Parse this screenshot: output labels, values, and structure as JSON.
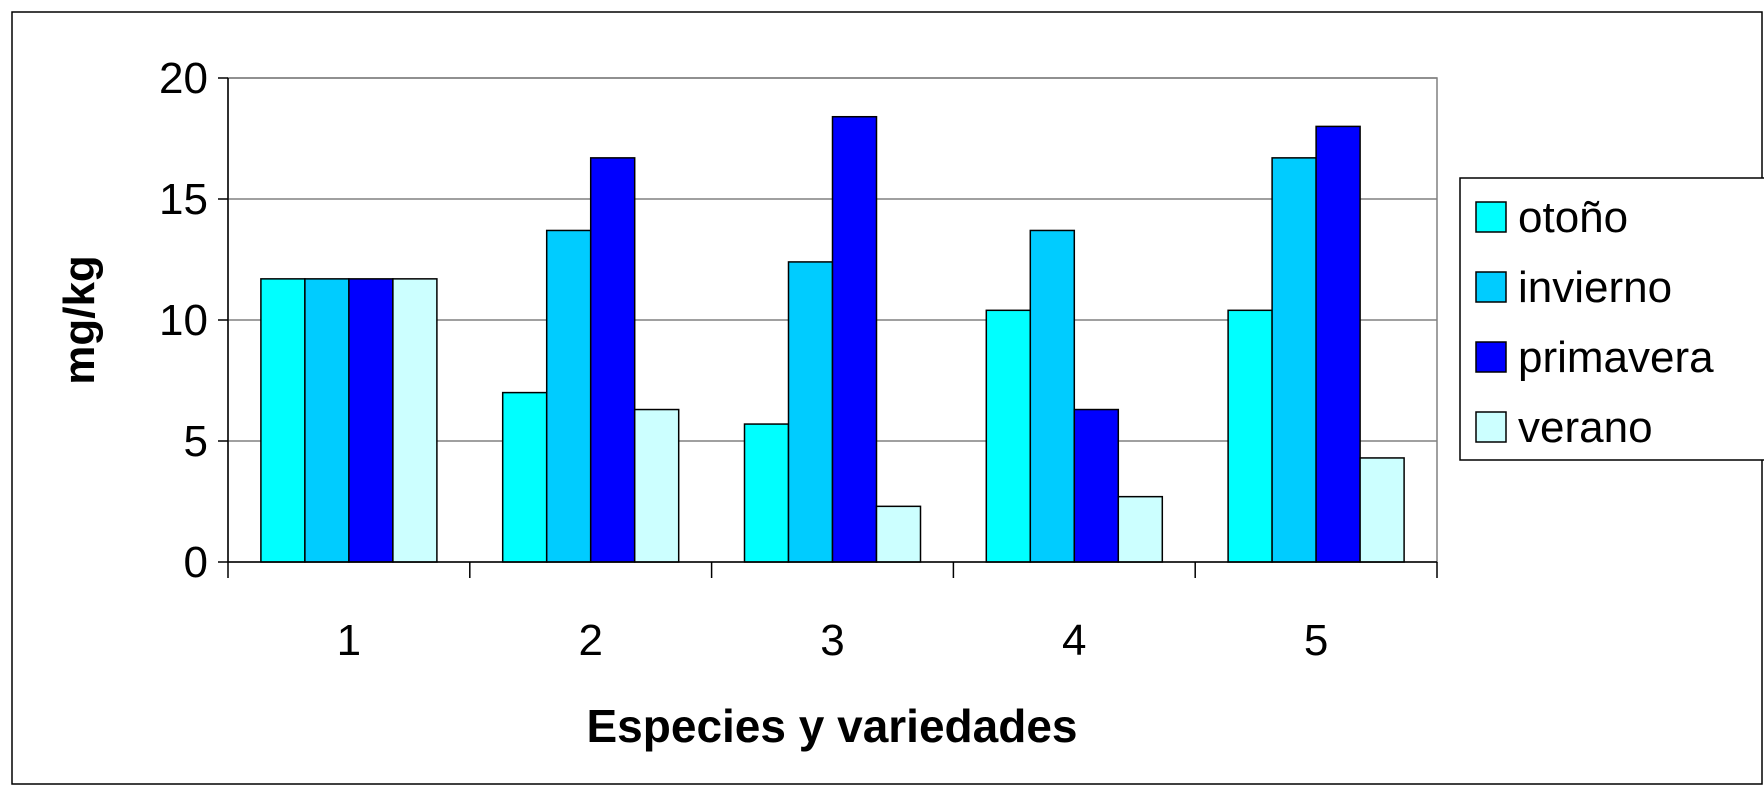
{
  "chart_data": {
    "type": "bar",
    "title": "",
    "xlabel": "Especies y variedades",
    "ylabel": "mg/kg",
    "categories": [
      "1",
      "2",
      "3",
      "4",
      "5"
    ],
    "ylim": [
      0,
      20
    ],
    "yticks": [
      "0",
      "5",
      "10",
      "15",
      "20"
    ],
    "grid": true,
    "legend_position": "right",
    "series": [
      {
        "name": "otoño",
        "color": "#00ffff",
        "values": [
          11.7,
          7.0,
          5.7,
          10.4,
          10.4
        ]
      },
      {
        "name": "invierno",
        "color": "#00ccff",
        "values": [
          11.7,
          13.7,
          12.4,
          13.7,
          16.7
        ]
      },
      {
        "name": "primavera",
        "color": "#0000ff",
        "values": [
          11.7,
          16.7,
          18.4,
          6.3,
          18.0
        ]
      },
      {
        "name": "verano",
        "color": "#ccffff",
        "values": [
          11.7,
          6.3,
          2.3,
          2.7,
          4.3
        ]
      }
    ]
  }
}
